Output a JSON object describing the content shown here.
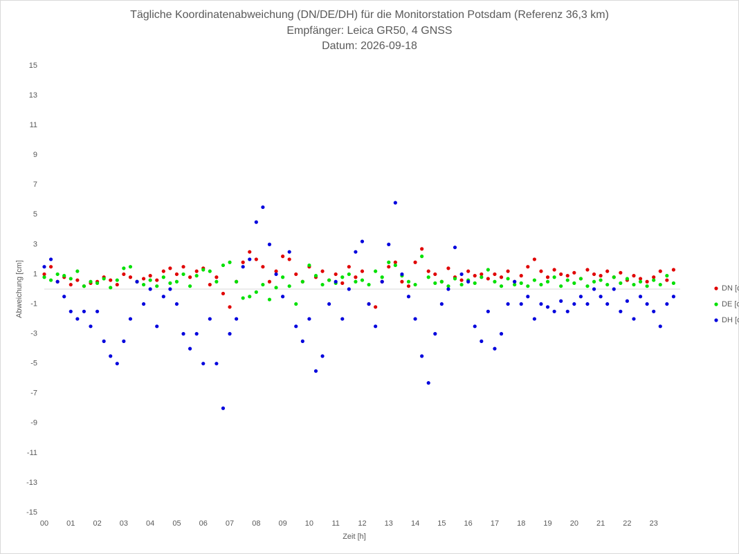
{
  "chart_data": {
    "type": "scatter",
    "title": "Tägliche Koordinatenabweichung (DN/DE/DH) für die Monitorstation Potsdam (Referenz 36,3 km)",
    "subtitle": "Empfänger: Leica GR50, 4 GNSS",
    "date": "Datum: 2026-09-18",
    "xlabel": "Zeit [h]",
    "ylabel": "Abweichung [cm]",
    "xlim": [
      0,
      24
    ],
    "ylim": [
      -15,
      15
    ],
    "xticks": [
      {
        "value": 0,
        "label": "00"
      },
      {
        "value": 1,
        "label": "01"
      },
      {
        "value": 2,
        "label": "02"
      },
      {
        "value": 3,
        "label": "03"
      },
      {
        "value": 4,
        "label": "04"
      },
      {
        "value": 5,
        "label": "05"
      },
      {
        "value": 6,
        "label": "06"
      },
      {
        "value": 7,
        "label": "07"
      },
      {
        "value": 8,
        "label": "08"
      },
      {
        "value": 9,
        "label": "09"
      },
      10,
      11,
      12,
      13,
      14,
      15,
      16,
      17,
      18,
      19,
      20,
      21,
      22,
      23
    ],
    "yticks": [
      -15,
      -13,
      -11,
      -9,
      -7,
      -5,
      -3,
      -1,
      1,
      3,
      5,
      7,
      9,
      11,
      13,
      15
    ],
    "grid": false,
    "legend": "right",
    "x": [
      0,
      0.25,
      0.5,
      0.75,
      1,
      1.25,
      1.5,
      1.75,
      2,
      2.25,
      2.5,
      2.75,
      3,
      3.25,
      3.5,
      3.75,
      4,
      4.25,
      4.5,
      4.75,
      5,
      5.25,
      5.5,
      5.75,
      6,
      6.25,
      6.5,
      6.75,
      7,
      7.25,
      7.5,
      7.75,
      8,
      8.25,
      8.5,
      8.75,
      9,
      9.25,
      9.5,
      9.75,
      10,
      10.25,
      10.5,
      10.75,
      11,
      11.25,
      11.5,
      11.75,
      12,
      12.25,
      12.5,
      12.75,
      13,
      13.25,
      13.5,
      13.75,
      14,
      14.25,
      14.5,
      14.75,
      15,
      15.25,
      15.5,
      15.75,
      16,
      16.25,
      16.5,
      16.75,
      17,
      17.25,
      17.5,
      17.75,
      18,
      18.25,
      18.5,
      18.75,
      19,
      19.25,
      19.5,
      19.75,
      20,
      20.25,
      20.5,
      20.75,
      21,
      21.25,
      21.5,
      21.75,
      22,
      22.25,
      22.5,
      22.75,
      23,
      23.25,
      23.5,
      23.75
    ],
    "series": [
      {
        "name": "DN [cm]",
        "color": "#e00000",
        "values": [
          1,
          1.5,
          0.5,
          0.8,
          0.3,
          0.6,
          0.2,
          0.4,
          0.5,
          0.8,
          0.6,
          0.3,
          1,
          0.8,
          0.5,
          0.7,
          0.9,
          0.6,
          1.2,
          1.4,
          1,
          1.5,
          0.8,
          1.2,
          1.4,
          0.3,
          0.8,
          -0.3,
          -1.2,
          0.5,
          1.8,
          2.5,
          2,
          1.5,
          0.5,
          1.2,
          2.2,
          2,
          1,
          0.5,
          1.5,
          0.8,
          1.2,
          0.6,
          1,
          0.4,
          1.5,
          0.8,
          1.2,
          -1,
          -1.2,
          0.5,
          1.5,
          1.8,
          0.5,
          0.2,
          1.8,
          2.7,
          1.2,
          1,
          0.5,
          1.4,
          0.8,
          0.6,
          1.2,
          0.9,
          1,
          0.7,
          1,
          0.8,
          1.2,
          0.5,
          0.9,
          1.5,
          2,
          1.2,
          0.8,
          1.3,
          1,
          0.9,
          1.1,
          0.7,
          1.3,
          1,
          0.9,
          1.2,
          0.8,
          1.1,
          0.6,
          0.9,
          0.7,
          0.5,
          0.8,
          1.2,
          0.6,
          1.3
        ]
      },
      {
        "name": "DE [cm]",
        "color": "#00e000",
        "values": [
          0.8,
          0.6,
          1,
          0.9,
          0.7,
          1.2,
          0.2,
          0.5,
          0.4,
          0.7,
          0.1,
          0.6,
          1.4,
          1.5,
          0.5,
          0.3,
          0.6,
          0.2,
          0.8,
          0.4,
          0.5,
          1,
          0.2,
          0.9,
          1.3,
          1.2,
          0.5,
          1.6,
          1.8,
          0.5,
          -0.6,
          -0.5,
          -0.2,
          0.3,
          -0.7,
          0.1,
          0.8,
          0.2,
          -1,
          0.5,
          1.6,
          0.9,
          0.3,
          0.6,
          0.4,
          0.8,
          1,
          0.5,
          0.6,
          0.3,
          1.2,
          0.8,
          1.8,
          1.6,
          0.9,
          0.5,
          0.3,
          2.2,
          0.8,
          0.4,
          0.5,
          0.2,
          0.7,
          0.3,
          0.6,
          0.4,
          0.8,
          1.3,
          0.5,
          0.2,
          0.7,
          0.3,
          0.4,
          0.2,
          0.6,
          0.3,
          0.5,
          0.8,
          0.2,
          0.6,
          0.4,
          0.7,
          0.2,
          0.5,
          0.6,
          0.3,
          0.8,
          0.4,
          0.7,
          0.3,
          0.5,
          0.2,
          0.6,
          0.3,
          0.9,
          0.4
        ]
      },
      {
        "name": "DH [cm]",
        "color": "#0000dd",
        "values": [
          1.5,
          2,
          0.5,
          -0.5,
          -1.5,
          -2,
          -1.5,
          -2.5,
          -1.5,
          -3.5,
          -4.5,
          -5,
          -3.5,
          -2,
          0.5,
          -1,
          0,
          -2.5,
          -0.5,
          0,
          -1,
          -3,
          -4,
          -3,
          -5,
          -2,
          -5,
          -8,
          -3,
          -2,
          1.5,
          2,
          4.5,
          5.5,
          3,
          1,
          -0.5,
          2.5,
          -2.5,
          -3.5,
          -2,
          -5.5,
          -4.5,
          -1,
          0.5,
          -2,
          0,
          2.5,
          3.2,
          -1,
          -2.5,
          0.5,
          3,
          5.8,
          1,
          -0.5,
          -2,
          -4.5,
          -6.3,
          -3,
          -1,
          0,
          2.8,
          1,
          0.5,
          -2.5,
          -3.5,
          -1.5,
          -4,
          -3,
          -1,
          0.5,
          -1,
          -0.5,
          -2,
          -1,
          -1.2,
          -1.5,
          -0.8,
          -1.5,
          -1,
          -0.5,
          -1,
          0,
          -0.5,
          -1,
          0,
          -1.5,
          -0.8,
          -2,
          -0.5,
          -1,
          -1.5,
          -2.5,
          -1,
          -0.5
        ]
      }
    ]
  }
}
